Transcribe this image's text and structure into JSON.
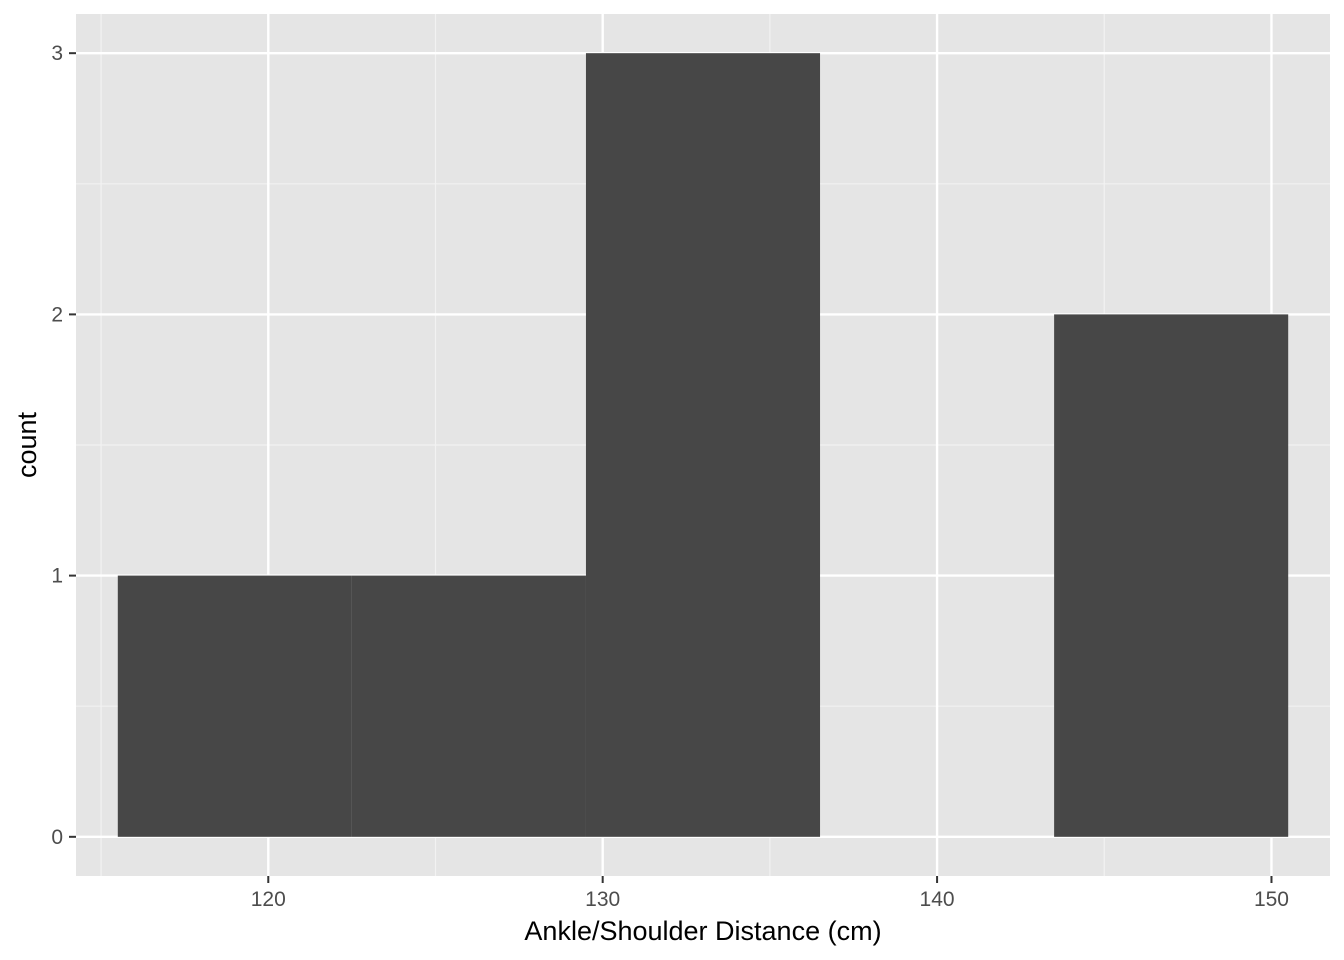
{
  "chart_data": {
    "type": "bar",
    "subtype": "histogram",
    "title": "",
    "xlabel": "Ankle/Shoulder Distance (cm)",
    "ylabel": "count",
    "bins": [
      {
        "x0": 115.5,
        "x1": 122.5,
        "count": 1
      },
      {
        "x0": 122.5,
        "x1": 129.5,
        "count": 1
      },
      {
        "x0": 129.5,
        "x1": 136.5,
        "count": 3
      },
      {
        "x0": 136.5,
        "x1": 143.5,
        "count": 0
      },
      {
        "x0": 143.5,
        "x1": 150.5,
        "count": 2
      }
    ],
    "xlim": [
      114.25,
      151.75
    ],
    "ylim": [
      -0.15,
      3.15
    ],
    "x_ticks": [
      120,
      130,
      140,
      150
    ],
    "x_tick_labels": [
      "120",
      "130",
      "140",
      "150"
    ],
    "x_minor_ticks": [
      115,
      125,
      135,
      145
    ],
    "y_ticks": [
      0,
      1,
      2,
      3
    ],
    "y_tick_labels": [
      "0",
      "1",
      "2",
      "3"
    ],
    "y_minor_ticks": [
      0.5,
      1.5,
      2.5
    ],
    "grid": true,
    "legend": "none",
    "colors": {
      "panel_background": "#e5e5e5",
      "grid_major": "#ffffff",
      "grid_minor": "#f2f2f2",
      "bar_fill": "#474747",
      "tick_color": "#333333"
    }
  }
}
